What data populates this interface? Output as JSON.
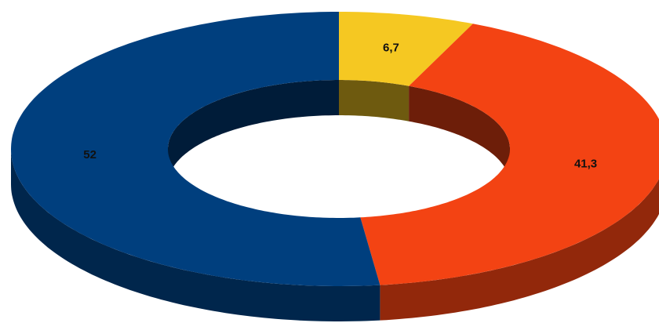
{
  "chart_data": {
    "type": "donut",
    "values": [
      6.7,
      41.3,
      52
    ],
    "value_labels": [
      "6,7",
      "41,3",
      "52"
    ],
    "colors": [
      "#f5c822",
      "#f34313",
      "#003f7e"
    ]
  }
}
